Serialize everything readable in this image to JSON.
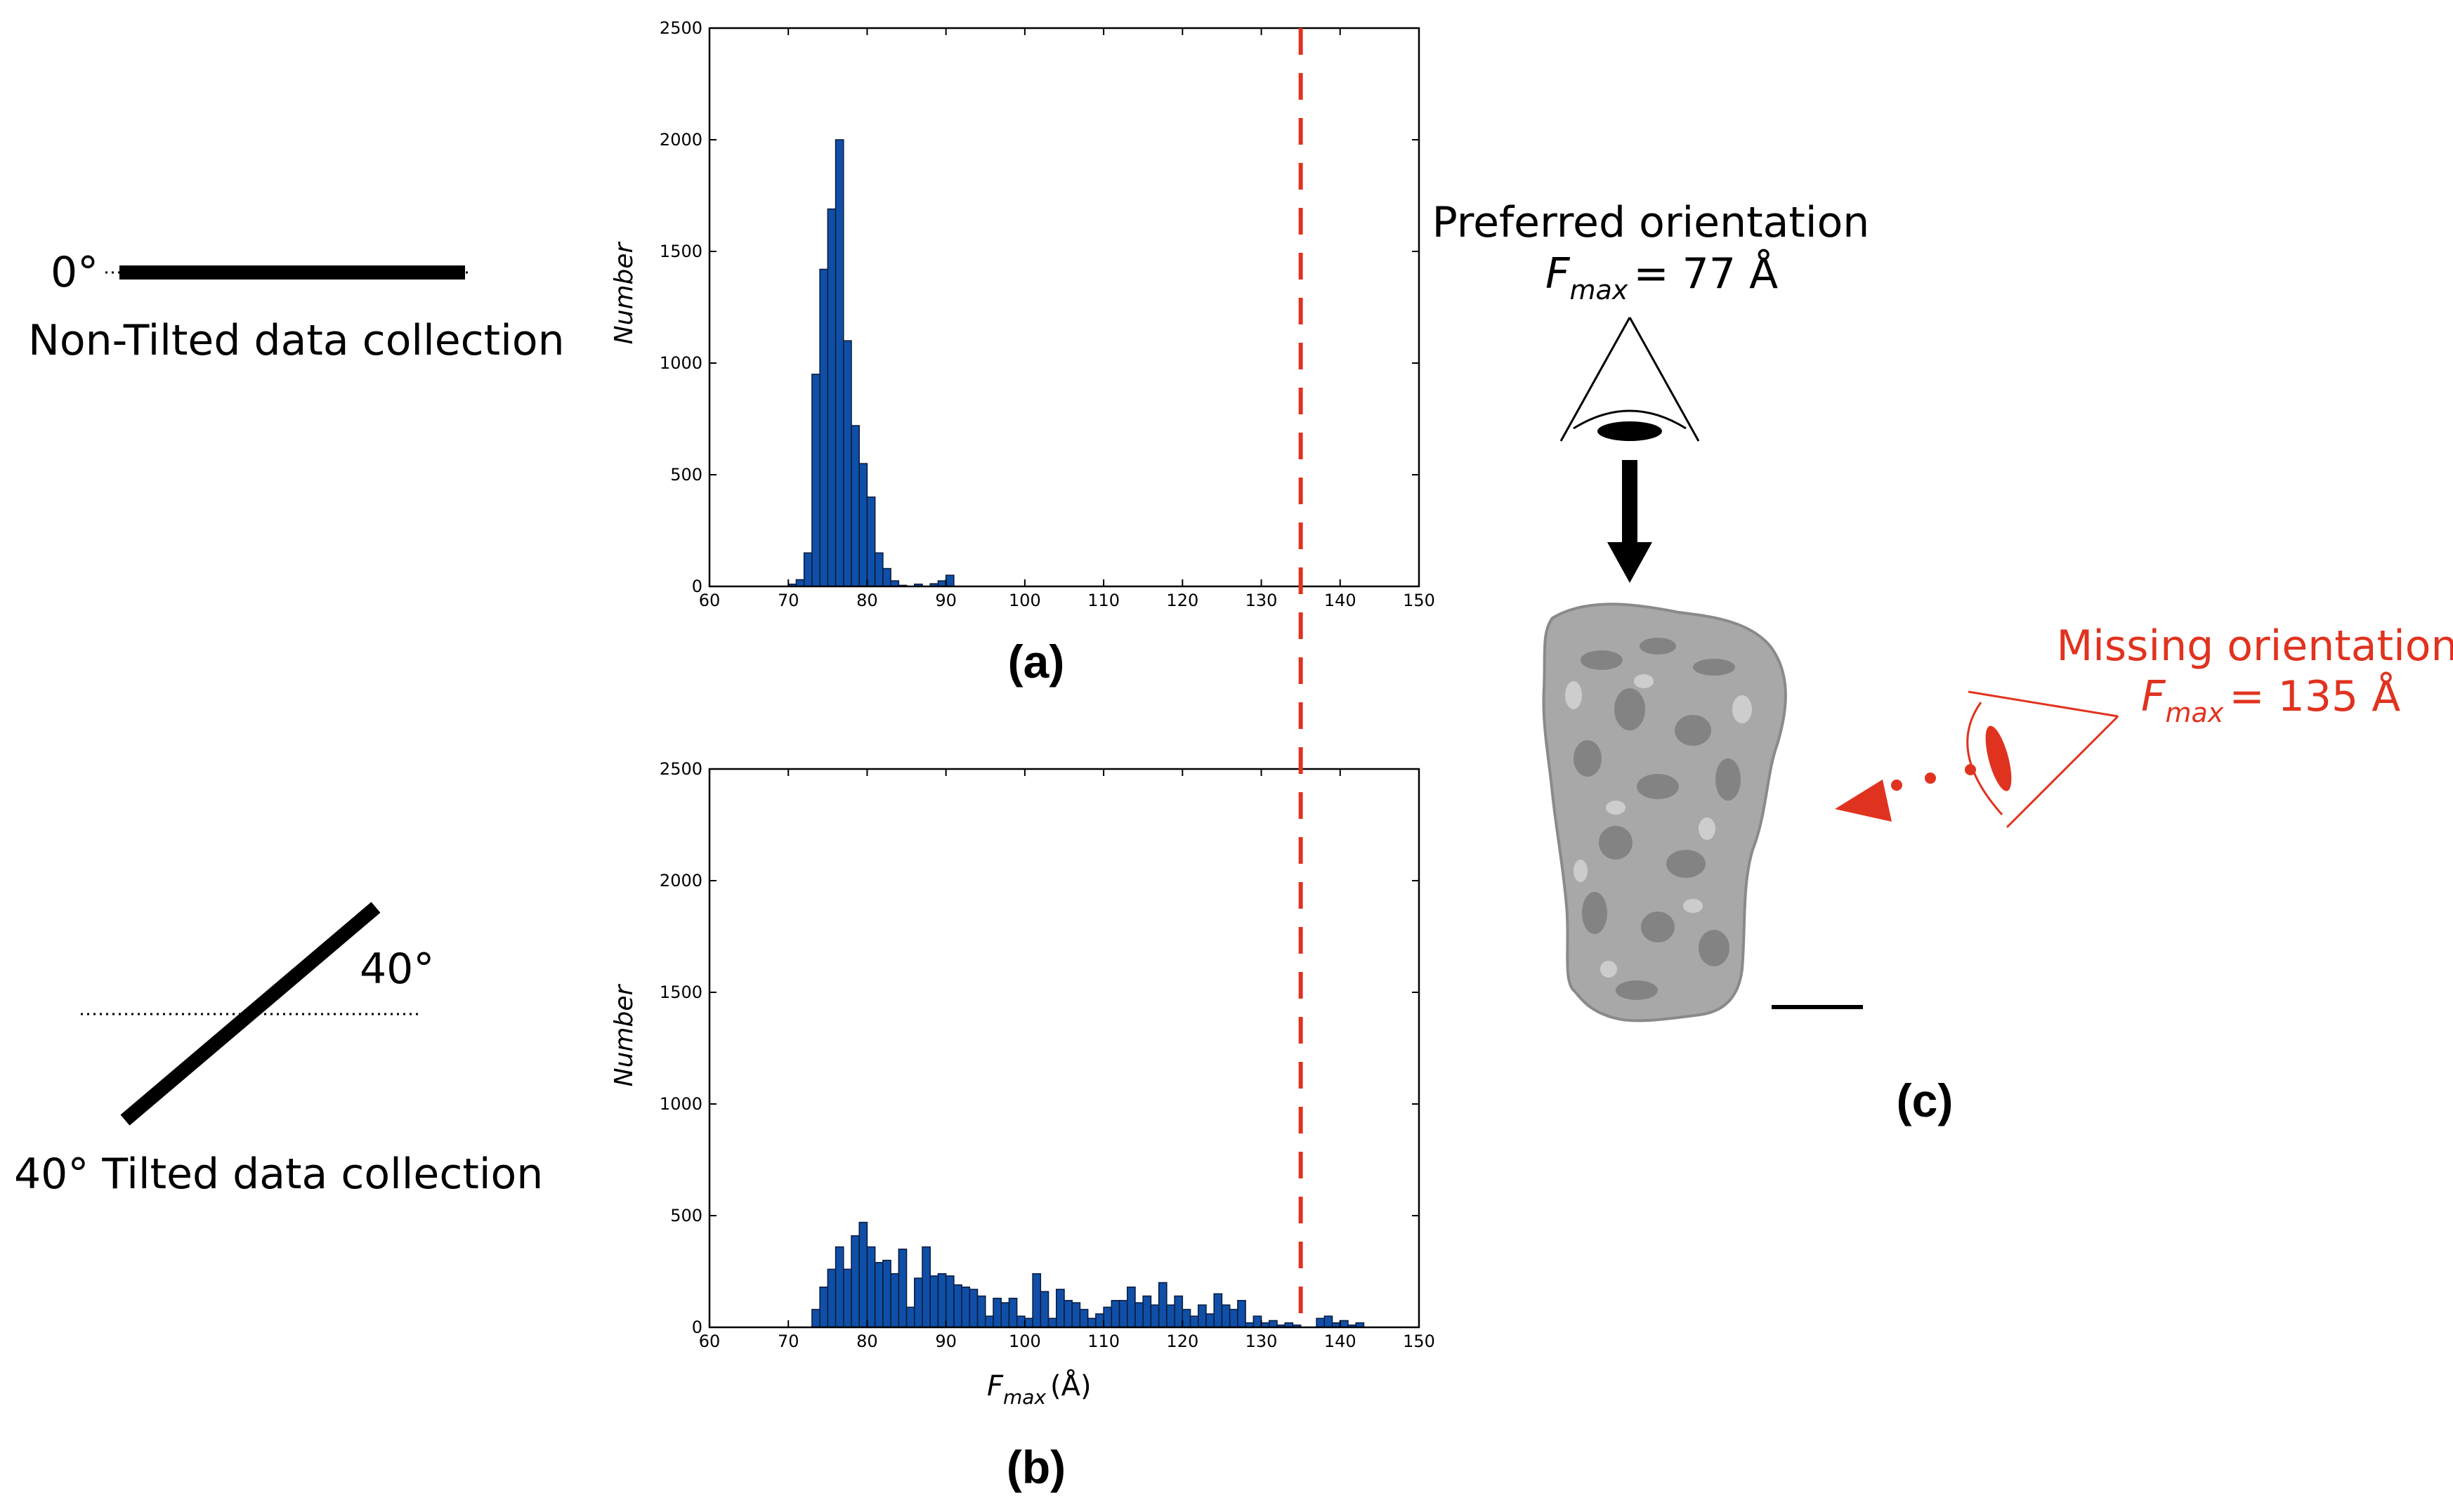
{
  "left": {
    "angle0": "0°",
    "label_non_tilted": "Non-Tilted data collection",
    "angle40": "40°",
    "label_tilted": "40° Tilted data collection"
  },
  "chart_data": [
    {
      "type": "bar",
      "panel_label": "(a)",
      "ylabel": "Number",
      "xlabel": "",
      "xlim": [
        60,
        150
      ],
      "ylim": [
        0,
        2500
      ],
      "xticks": [
        60,
        70,
        80,
        90,
        100,
        110,
        120,
        130,
        140,
        150
      ],
      "yticks": [
        0,
        500,
        1000,
        1500,
        2000,
        2500
      ],
      "bin_width": 1,
      "bins": [
        [
          70,
          10
        ],
        [
          71,
          30
        ],
        [
          72,
          150
        ],
        [
          73,
          950
        ],
        [
          74,
          1420
        ],
        [
          75,
          1690
        ],
        [
          76,
          2000
        ],
        [
          77,
          1100
        ],
        [
          78,
          720
        ],
        [
          79,
          550
        ],
        [
          80,
          400
        ],
        [
          81,
          150
        ],
        [
          82,
          80
        ],
        [
          83,
          25
        ],
        [
          84,
          5
        ],
        [
          86,
          10
        ],
        [
          88,
          12
        ],
        [
          89,
          25
        ],
        [
          90,
          50
        ]
      ],
      "threshold_x": 135,
      "bar_color": "#0f4fa8",
      "threshold_color": "#e0331f"
    },
    {
      "type": "bar",
      "panel_label": "(b)",
      "ylabel": "Number",
      "xlabel": "F",
      "xlabel_sub": "max",
      "xlabel_unit": "(Å)",
      "xlim": [
        60,
        150
      ],
      "ylim": [
        0,
        2500
      ],
      "xticks": [
        60,
        70,
        80,
        90,
        100,
        110,
        120,
        130,
        140,
        150
      ],
      "yticks": [
        0,
        500,
        1000,
        1500,
        2000,
        2500
      ],
      "bin_width": 1,
      "bins": [
        [
          73,
          80
        ],
        [
          74,
          180
        ],
        [
          75,
          260
        ],
        [
          76,
          360
        ],
        [
          77,
          260
        ],
        [
          78,
          410
        ],
        [
          79,
          470
        ],
        [
          80,
          360
        ],
        [
          81,
          290
        ],
        [
          82,
          300
        ],
        [
          83,
          240
        ],
        [
          84,
          350
        ],
        [
          85,
          90
        ],
        [
          86,
          220
        ],
        [
          87,
          360
        ],
        [
          88,
          230
        ],
        [
          89,
          240
        ],
        [
          90,
          230
        ],
        [
          91,
          190
        ],
        [
          92,
          180
        ],
        [
          93,
          170
        ],
        [
          94,
          140
        ],
        [
          95,
          50
        ],
        [
          96,
          130
        ],
        [
          97,
          110
        ],
        [
          98,
          130
        ],
        [
          99,
          50
        ],
        [
          100,
          40
        ],
        [
          101,
          240
        ],
        [
          102,
          160
        ],
        [
          103,
          40
        ],
        [
          104,
          170
        ],
        [
          105,
          120
        ],
        [
          106,
          110
        ],
        [
          107,
          80
        ],
        [
          108,
          40
        ],
        [
          109,
          60
        ],
        [
          110,
          90
        ],
        [
          111,
          120
        ],
        [
          112,
          120
        ],
        [
          113,
          180
        ],
        [
          114,
          110
        ],
        [
          115,
          140
        ],
        [
          116,
          100
        ],
        [
          117,
          200
        ],
        [
          118,
          100
        ],
        [
          119,
          140
        ],
        [
          120,
          80
        ],
        [
          121,
          50
        ],
        [
          122,
          100
        ],
        [
          123,
          60
        ],
        [
          124,
          150
        ],
        [
          125,
          100
        ],
        [
          126,
          80
        ],
        [
          127,
          120
        ],
        [
          128,
          20
        ],
        [
          129,
          50
        ],
        [
          130,
          20
        ],
        [
          131,
          30
        ],
        [
          132,
          10
        ],
        [
          133,
          20
        ],
        [
          134,
          10
        ],
        [
          137,
          40
        ],
        [
          138,
          50
        ],
        [
          139,
          20
        ],
        [
          140,
          30
        ],
        [
          141,
          10
        ],
        [
          142,
          20
        ]
      ],
      "threshold_x": 135,
      "bar_color": "#0f4fa8",
      "threshold_color": "#e0331f"
    }
  ],
  "right": {
    "preferred_title": "Preferred orientation",
    "preferred_f": "F",
    "preferred_sub": "max",
    "preferred_value": "= 77 Å",
    "missing_title": "Missing orientation",
    "missing_f": "F",
    "missing_sub": "max",
    "missing_value": "= 135 Å",
    "missing_color": "#e0331f",
    "panel_label": "(c)",
    "density_color": "#a8a8a8"
  }
}
